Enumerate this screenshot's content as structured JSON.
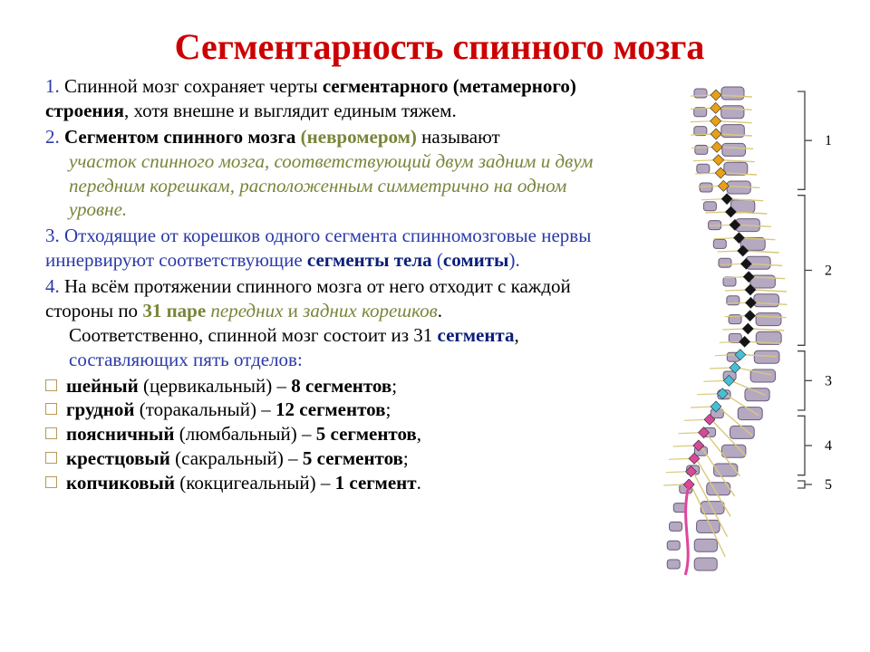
{
  "title": "Сегментарность спинного мозга",
  "p1_a": "Спинной мозг сохраняет черты ",
  "p1_b": "сегментарного (метамерного) строения",
  "p1_c": ", хотя внешне и выглядит единым тяжем.",
  "p2_a": "Сегментом спинного мозга ",
  "p2_b": "(невромером)",
  "p2_c": " называют ",
  "p2_d": "участок спинного мозга, соответствующий двум задним и двум передним корешкам, расположенным симметрично на одном уровне.",
  "p3_a": "Отходящие от корешков одного сегмента спинномозговые нервы иннервируют соответствующие ",
  "p3_b": "сегменты тела",
  "p3_c": " (",
  "p3_d": "сомиты",
  "p3_e": ").",
  "p4_a": "На всём протяжении спинного мозга от него отходит с каждой стороны по ",
  "p4_b": "31 паре",
  "p4_c": " передних",
  "p4_d": " и ",
  "p4_e": "задних корешков",
  "p4_f": ".",
  "p4_g": "Соответственно, спинной мозг состоит из 31 ",
  "p4_h": "сегмента",
  "p4_i": ",",
  "p4_j": "составляющих пять отделов:",
  "b1_a": "шейный",
  "b1_b": " (цервикальный) – ",
  "b1_c": "8 сегментов",
  "b1_d": ";",
  "b2_a": "грудной",
  "b2_b": " (торакальный) – ",
  "b2_c": "12 сегментов",
  "b2_d": ";",
  "b3_a": "поясничный",
  "b3_b": " (люмбальный) – ",
  "b3_c": "5 сегментов",
  "b3_d": ",",
  "b4_a": "крестцовый",
  "b4_b": " (сакральный) – ",
  "b4_c": "5 сегментов",
  "b4_d": ";",
  "b5_a": "копчиковый",
  "b5_b": " (кокцигеальный) – ",
  "b5_c": "1 сегмент",
  "b5_d": ".",
  "n1": "1. ",
  "n2": "2. ",
  "n3": "3. ",
  "n4": "4. ",
  "colors": {
    "title": "#cc0000",
    "num": "#2a3aa8",
    "olive": "#7a843a",
    "dblue": "#0a1e7a",
    "black": "#000000",
    "bullet_border": "#b89a5a",
    "cervical": "#e8a018",
    "thoracic": "#141414",
    "lumbar": "#46c0d6",
    "sacral": "#d64a9a",
    "coccyx": "#e0459c",
    "vertebra_fill": "#b5a9c2",
    "vertebra_stroke": "#6a5a7a",
    "nerve": "#d8c97a",
    "bracket": "#444444",
    "label": "#000000"
  },
  "diagram": {
    "labels": [
      "1",
      "2",
      "3",
      "4",
      "5"
    ],
    "sections": [
      {
        "part": "cervical",
        "count": 8,
        "color": "#e8a018"
      },
      {
        "part": "thoracic",
        "count": 12,
        "color": "#141414"
      },
      {
        "part": "lumbar",
        "count": 5,
        "color": "#46c0d6"
      },
      {
        "part": "sacral",
        "count": 5,
        "color": "#d64a9a"
      },
      {
        "part": "coccyx",
        "count": 1,
        "color": "#e0459c"
      }
    ]
  }
}
